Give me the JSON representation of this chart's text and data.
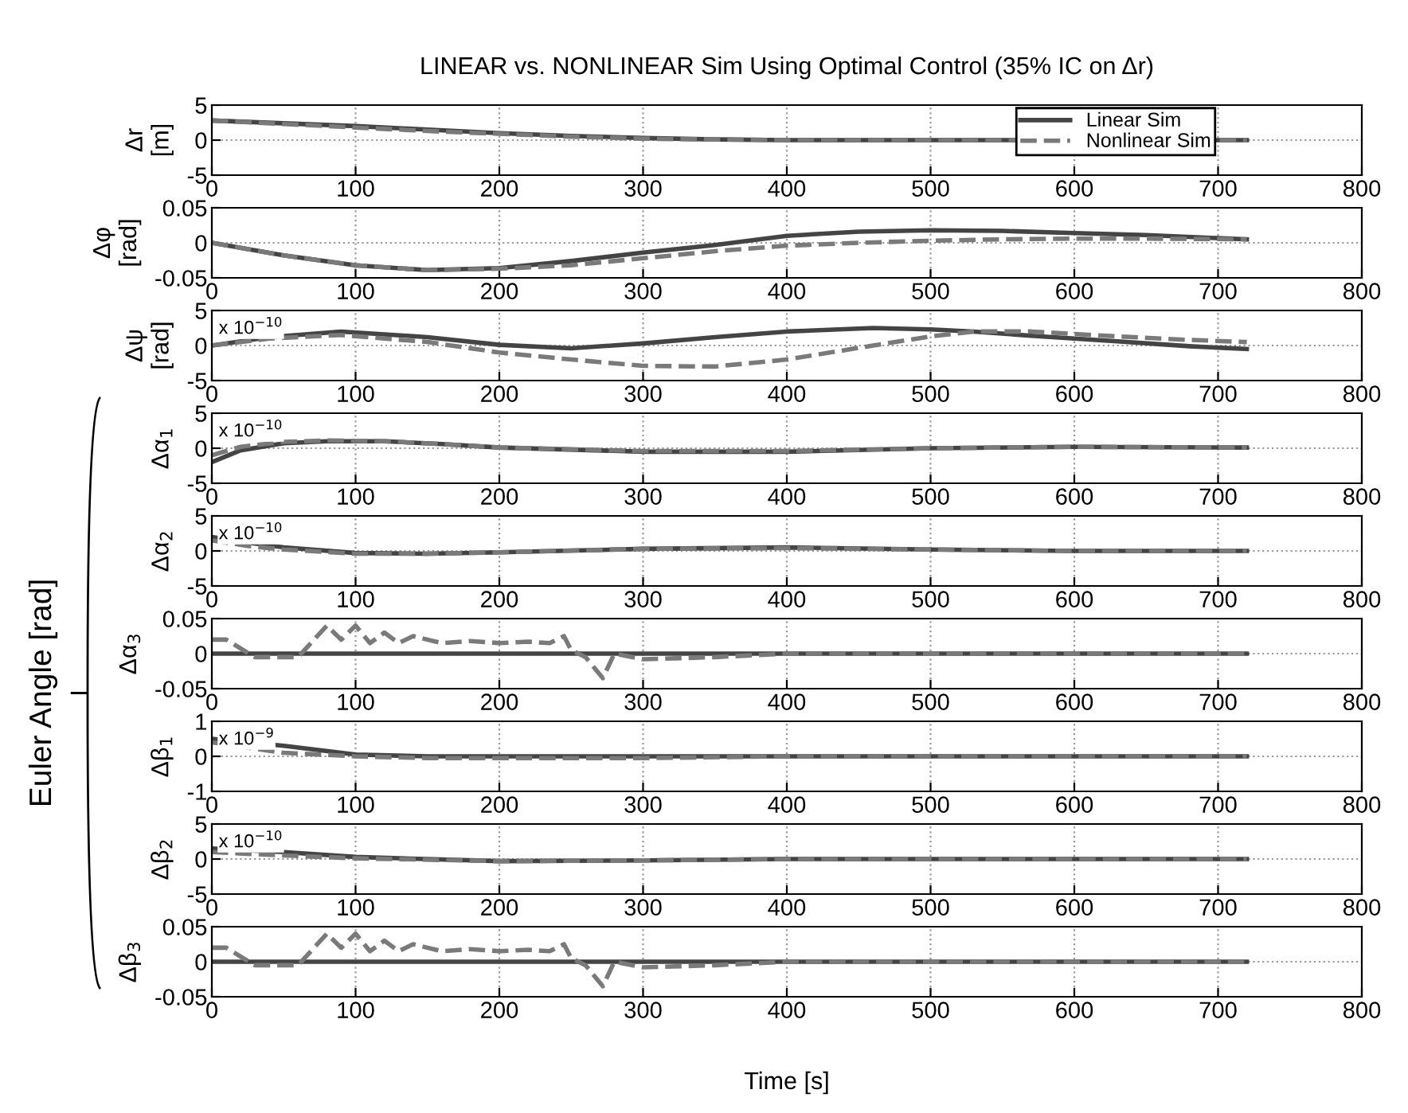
{
  "chart_data": [
    {
      "type": "line",
      "title": "LINEAR vs. NONLINEAR Sim Using Optimal Control (35% IC on Δr)",
      "ylabel": "Δr\n[m]",
      "legend": "top right",
      "grid": true,
      "xlim": [
        0,
        800
      ],
      "xticks": [
        0,
        100,
        200,
        300,
        400,
        500,
        600,
        700,
        800
      ],
      "ylim": [
        -5,
        5
      ],
      "yticks": [
        -5,
        0,
        5
      ],
      "x": [
        0,
        50,
        100,
        150,
        200,
        250,
        300,
        350,
        400,
        500,
        720
      ],
      "series": [
        {
          "name": "Linear Sim",
          "color": "#444444",
          "line_style": "solid",
          "values": [
            2.8,
            2.4,
            2.0,
            1.5,
            1.0,
            0.6,
            0.3,
            0.1,
            0,
            0,
            0
          ]
        },
        {
          "name": "Nonlinear Sim",
          "color": "#7a7a7a",
          "line_style": "dashed",
          "values": [
            2.8,
            2.3,
            1.8,
            1.3,
            0.9,
            0.5,
            0.2,
            0.1,
            0,
            0,
            0
          ]
        }
      ]
    },
    {
      "type": "line",
      "ylabel": "Δφ\n[rad]",
      "grid": true,
      "xlim": [
        0,
        800
      ],
      "xticks": [
        0,
        100,
        200,
        300,
        400,
        500,
        600,
        700,
        800
      ],
      "ylim": [
        -0.05,
        0.05
      ],
      "yticks": [
        -0.05,
        0,
        0.05
      ],
      "x": [
        0,
        50,
        100,
        150,
        200,
        250,
        300,
        350,
        400,
        450,
        500,
        550,
        600,
        650,
        720
      ],
      "series": [
        {
          "color": "#444444",
          "line_style": "solid",
          "values": [
            0,
            -0.018,
            -0.032,
            -0.039,
            -0.036,
            -0.026,
            -0.014,
            -0.003,
            0.01,
            0.016,
            0.018,
            0.017,
            0.014,
            0.011,
            0.005
          ]
        },
        {
          "color": "#7a7a7a",
          "line_style": "dashed",
          "values": [
            0,
            -0.018,
            -0.032,
            -0.039,
            -0.037,
            -0.032,
            -0.022,
            -0.012,
            -0.004,
            0.0,
            0.003,
            0.005,
            0.006,
            0.006,
            0.005
          ]
        }
      ]
    },
    {
      "type": "line",
      "ylabel": "Δψ\n[rad]",
      "annotations": [
        "x 10$^{−10}$"
      ],
      "grid": true,
      "xlim": [
        0,
        800
      ],
      "xticks": [
        0,
        100,
        200,
        300,
        400,
        500,
        600,
        700,
        800
      ],
      "ylim": [
        -5,
        5
      ],
      "yticks": [
        -5,
        0,
        5
      ],
      "x": [
        0,
        40,
        90,
        150,
        200,
        250,
        300,
        350,
        400,
        460,
        500,
        530,
        570,
        630,
        680,
        720
      ],
      "series": [
        {
          "color": "#444444",
          "line_style": "solid",
          "values": [
            0,
            1.2,
            2.0,
            1.2,
            0.1,
            -0.4,
            0.3,
            1.2,
            2.0,
            2.5,
            2.3,
            2.0,
            1.4,
            0.6,
            -0.1,
            -0.5
          ]
        },
        {
          "color": "#7a7a7a",
          "line_style": "dashed",
          "values": [
            0,
            1.0,
            1.5,
            0.5,
            -1.0,
            -2.0,
            -2.9,
            -3.0,
            -2.0,
            0.0,
            1.3,
            2.0,
            2.0,
            1.3,
            0.8,
            0.5
          ]
        }
      ]
    },
    {
      "type": "line",
      "ylabel": "Δα$_{1}$",
      "annotations": [
        "x 10$^{−10}$",
        "Euler Angle [rad]"
      ],
      "grid": true,
      "xlim": [
        0,
        800
      ],
      "xticks": [
        0,
        100,
        200,
        300,
        400,
        500,
        600,
        700,
        800
      ],
      "ylim": [
        -5,
        5
      ],
      "yticks": [
        -5,
        0,
        5
      ],
      "x": [
        0,
        20,
        50,
        80,
        120,
        160,
        200,
        300,
        400,
        500,
        600,
        720
      ],
      "series": [
        {
          "color": "#444444",
          "line_style": "solid",
          "values": [
            -2.0,
            -0.3,
            0.7,
            1.0,
            1.0,
            0.6,
            0.1,
            -0.5,
            -0.5,
            0,
            0.2,
            0.1
          ]
        },
        {
          "color": "#7a7a7a",
          "line_style": "dashed",
          "values": [
            -1.0,
            0.2,
            0.9,
            1.1,
            1.0,
            0.6,
            0.1,
            -0.4,
            -0.4,
            0,
            0.2,
            0.1
          ]
        }
      ]
    },
    {
      "type": "line",
      "ylabel": "Δα$_{2}$",
      "annotations": [
        "x 10$^{−10}$"
      ],
      "grid": true,
      "xlim": [
        0,
        800
      ],
      "xticks": [
        0,
        100,
        200,
        300,
        400,
        500,
        600,
        700,
        800
      ],
      "ylim": [
        -5,
        5
      ],
      "yticks": [
        -5,
        0,
        5
      ],
      "x": [
        0,
        25,
        50,
        100,
        150,
        200,
        300,
        400,
        500,
        600,
        720
      ],
      "series": [
        {
          "color": "#444444",
          "line_style": "solid",
          "values": [
            2.0,
            1.2,
            0.5,
            -0.3,
            -0.4,
            -0.2,
            0.3,
            0.5,
            0.2,
            0.0,
            0.0
          ]
        },
        {
          "color": "#7a7a7a",
          "line_style": "dashed",
          "values": [
            1.5,
            0.7,
            0.2,
            -0.4,
            -0.4,
            -0.2,
            0.3,
            0.4,
            0.2,
            0.0,
            0.0
          ]
        }
      ]
    },
    {
      "type": "line",
      "ylabel": "Δα$_{3}$",
      "grid": true,
      "xlim": [
        0,
        800
      ],
      "xticks": [
        0,
        100,
        200,
        300,
        400,
        500,
        600,
        700,
        800
      ],
      "ylim": [
        -0.05,
        0.05
      ],
      "yticks": [
        -0.05,
        0,
        0.05
      ],
      "x": [
        0,
        10,
        30,
        60,
        80,
        90,
        100,
        110,
        120,
        130,
        140,
        160,
        180,
        200,
        220,
        235,
        245,
        250,
        260,
        272,
        280,
        300,
        350,
        400,
        500,
        600,
        720
      ],
      "series": [
        {
          "color": "#444444",
          "line_style": "solid",
          "values": [
            0,
            0,
            0,
            0,
            0,
            0,
            0,
            0,
            0,
            0,
            0,
            0,
            0,
            0,
            0,
            0,
            0,
            0,
            0,
            0,
            0,
            0,
            0,
            0,
            0,
            0,
            0
          ]
        },
        {
          "color": "#7a7a7a",
          "line_style": "dashed",
          "values": [
            0.02,
            0.02,
            -0.005,
            -0.005,
            0.04,
            0.02,
            0.04,
            0.015,
            0.03,
            0.015,
            0.025,
            0.015,
            0.018,
            0.015,
            0.017,
            0.015,
            0.025,
            0.005,
            -0.005,
            -0.035,
            0.0,
            -0.008,
            -0.005,
            0.0,
            0.0,
            0.0,
            0.0
          ]
        }
      ]
    },
    {
      "type": "line",
      "ylabel": "Δβ$_{1}$",
      "annotations": [
        "x 10$^{−9}$"
      ],
      "grid": true,
      "xlim": [
        0,
        800
      ],
      "xticks": [
        0,
        100,
        200,
        300,
        400,
        500,
        600,
        700,
        800
      ],
      "ylim": [
        -1,
        1
      ],
      "yticks": [
        -1,
        0,
        1
      ],
      "x": [
        0,
        50,
        100,
        150,
        200,
        300,
        400,
        500,
        600,
        720
      ],
      "series": [
        {
          "color": "#444444",
          "line_style": "solid",
          "values": [
            0.5,
            0.3,
            0.05,
            0,
            0,
            0,
            0,
            0,
            0,
            0
          ]
        },
        {
          "color": "#7a7a7a",
          "line_style": "dashed",
          "values": [
            0.4,
            0.1,
            0,
            -0.05,
            -0.05,
            -0.05,
            0,
            0,
            0,
            0
          ]
        }
      ]
    },
    {
      "type": "line",
      "ylabel": "Δβ$_{2}$",
      "annotations": [
        "x 10$^{−10}$"
      ],
      "grid": true,
      "xlim": [
        0,
        800
      ],
      "xticks": [
        0,
        100,
        200,
        300,
        400,
        500,
        600,
        700,
        800
      ],
      "ylim": [
        -5,
        5
      ],
      "yticks": [
        -5,
        0,
        5
      ],
      "x": [
        0,
        50,
        100,
        200,
        300,
        400,
        500,
        600,
        720
      ],
      "series": [
        {
          "color": "#444444",
          "line_style": "solid",
          "values": [
            1.5,
            1.0,
            0.3,
            -0.3,
            -0.2,
            0,
            0,
            0,
            0
          ]
        },
        {
          "color": "#7a7a7a",
          "line_style": "dashed",
          "values": [
            1.0,
            0.5,
            0.1,
            -0.3,
            -0.2,
            0,
            0,
            0,
            0
          ]
        }
      ]
    },
    {
      "type": "line",
      "ylabel": "Δβ$_{3}$",
      "xlabel": "Time [s]",
      "grid": true,
      "xlim": [
        0,
        800
      ],
      "xticks": [
        0,
        100,
        200,
        300,
        400,
        500,
        600,
        700,
        800
      ],
      "ylim": [
        -0.05,
        0.05
      ],
      "yticks": [
        -0.05,
        0,
        0.05
      ],
      "x": [
        0,
        10,
        30,
        60,
        80,
        90,
        100,
        110,
        120,
        130,
        140,
        160,
        180,
        200,
        220,
        235,
        245,
        250,
        260,
        272,
        280,
        300,
        350,
        400,
        500,
        600,
        720
      ],
      "series": [
        {
          "color": "#444444",
          "line_style": "solid",
          "values": [
            0,
            0,
            0,
            0,
            0,
            0,
            0,
            0,
            0,
            0,
            0,
            0,
            0,
            0,
            0,
            0,
            0,
            0,
            0,
            0,
            0,
            0,
            0,
            0,
            0,
            0,
            0
          ]
        },
        {
          "color": "#7a7a7a",
          "line_style": "dashed",
          "values": [
            0.02,
            0.02,
            -0.005,
            -0.005,
            0.04,
            0.02,
            0.04,
            0.015,
            0.03,
            0.015,
            0.025,
            0.015,
            0.018,
            0.015,
            0.017,
            0.015,
            0.025,
            0.005,
            -0.005,
            -0.035,
            0.0,
            -0.008,
            -0.005,
            0.0,
            0.0,
            0.0,
            0.0
          ]
        }
      ]
    }
  ]
}
